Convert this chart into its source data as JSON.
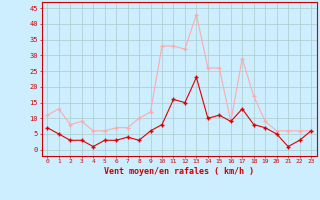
{
  "x": [
    0,
    1,
    2,
    3,
    4,
    5,
    6,
    7,
    8,
    9,
    10,
    11,
    12,
    13,
    14,
    15,
    16,
    17,
    18,
    19,
    20,
    21,
    22,
    23
  ],
  "avg_wind": [
    7,
    5,
    3,
    3,
    1,
    3,
    3,
    4,
    3,
    6,
    8,
    16,
    15,
    23,
    10,
    11,
    9,
    13,
    8,
    7,
    5,
    1,
    3,
    6
  ],
  "gust_wind": [
    11,
    13,
    8,
    9,
    6,
    6,
    7,
    7,
    10,
    12,
    33,
    33,
    32,
    43,
    26,
    26,
    9,
    29,
    17,
    9,
    6,
    6,
    6,
    6
  ],
  "avg_color": "#dd0000",
  "gust_color": "#ffaaaa",
  "background_color": "#cceeff",
  "grid_color": "#aacccc",
  "xlabel": "Vent moyen/en rafales ( km/h )",
  "ylabel_ticks": [
    0,
    5,
    10,
    15,
    20,
    25,
    30,
    35,
    40,
    45
  ],
  "ylim": [
    -2,
    47
  ],
  "xlim": [
    -0.5,
    23.5
  ],
  "xlabel_color": "#cc0000",
  "tick_color": "#cc0000",
  "axis_color": "#cc0000",
  "figsize": [
    3.2,
    2.0
  ],
  "dpi": 100
}
